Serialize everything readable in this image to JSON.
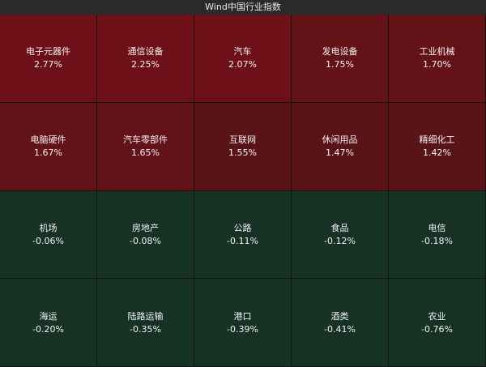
{
  "header": {
    "title": "Wind中国行业指数"
  },
  "colors": {
    "up_strong": "#6e1018",
    "up_mid": "#631218",
    "up_weak": "#5a1418",
    "down": "#163224"
  },
  "tiles": [
    {
      "name": "电子元器件",
      "change": "2.77%",
      "tone": "up_strong"
    },
    {
      "name": "通信设备",
      "change": "2.25%",
      "tone": "up_strong"
    },
    {
      "name": "汽车",
      "change": "2.07%",
      "tone": "up_strong"
    },
    {
      "name": "发电设备",
      "change": "1.75%",
      "tone": "up_mid"
    },
    {
      "name": "工业机械",
      "change": "1.70%",
      "tone": "up_mid"
    },
    {
      "name": "电脑硬件",
      "change": "1.67%",
      "tone": "up_mid"
    },
    {
      "name": "汽车零部件",
      "change": "1.65%",
      "tone": "up_mid"
    },
    {
      "name": "互联网",
      "change": "1.55%",
      "tone": "up_weak"
    },
    {
      "name": "休闲用品",
      "change": "1.47%",
      "tone": "up_weak"
    },
    {
      "name": "精细化工",
      "change": "1.42%",
      "tone": "up_weak"
    },
    {
      "name": "机场",
      "change": "-0.06%",
      "tone": "down"
    },
    {
      "name": "房地产",
      "change": "-0.08%",
      "tone": "down"
    },
    {
      "name": "公路",
      "change": "-0.11%",
      "tone": "down"
    },
    {
      "name": "食品",
      "change": "-0.12%",
      "tone": "down"
    },
    {
      "name": "电信",
      "change": "-0.18%",
      "tone": "down"
    },
    {
      "name": "海运",
      "change": "-0.20%",
      "tone": "down"
    },
    {
      "name": "陆路运输",
      "change": "-0.35%",
      "tone": "down"
    },
    {
      "name": "港口",
      "change": "-0.39%",
      "tone": "down"
    },
    {
      "name": "酒类",
      "change": "-0.41%",
      "tone": "down"
    },
    {
      "name": "农业",
      "change": "-0.76%",
      "tone": "down"
    }
  ]
}
